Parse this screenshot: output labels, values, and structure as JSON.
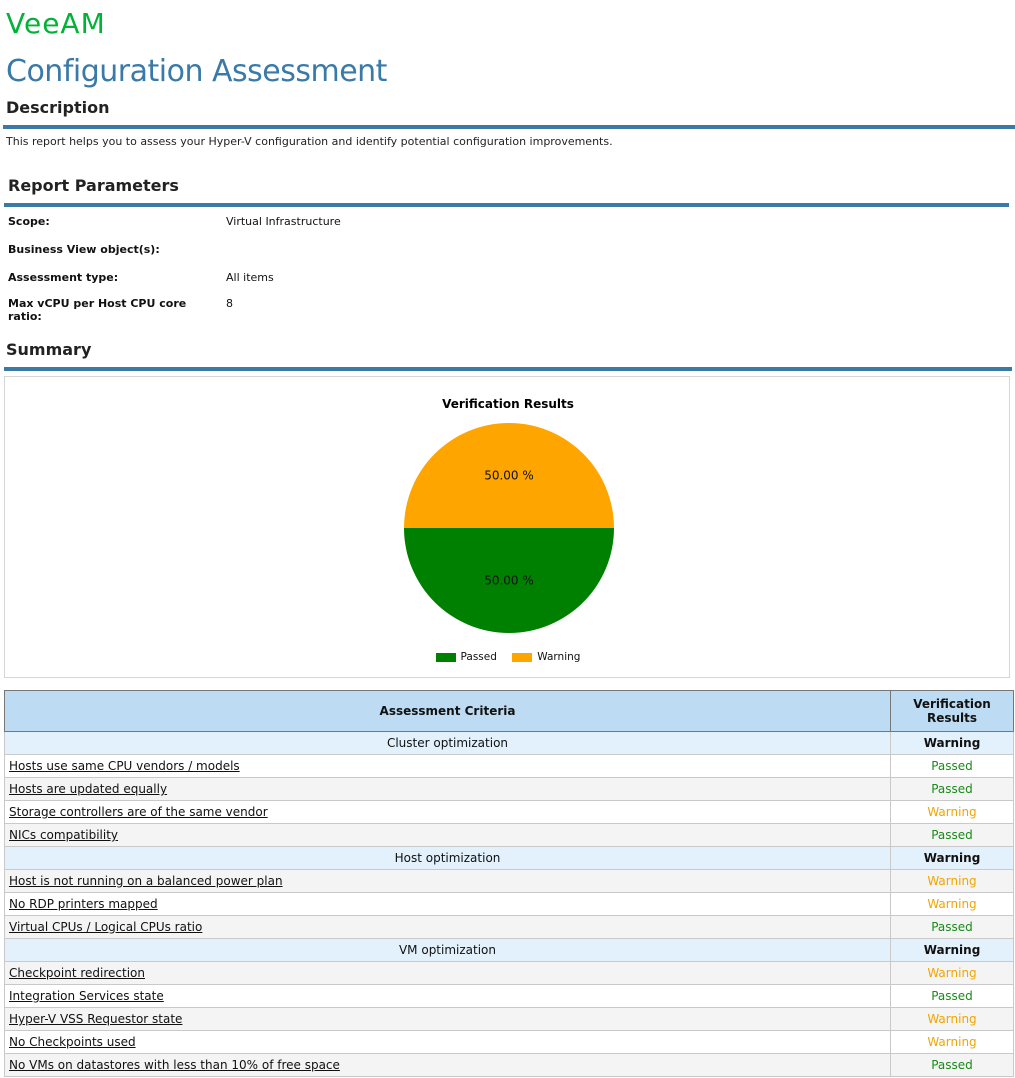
{
  "brand": {
    "logo": "VeeAM"
  },
  "title": "Configuration Assessment",
  "description": {
    "heading": "Description",
    "text": "This report helps you to assess your Hyper-V configuration and identify potential configuration improvements."
  },
  "parameters": {
    "heading": "Report Parameters",
    "items": [
      {
        "label": "Scope:",
        "value": "Virtual Infrastructure"
      },
      {
        "label": "Business View object(s):",
        "value": ""
      },
      {
        "label": "Assessment type:",
        "value": "All items"
      },
      {
        "label": "Max vCPU per Host CPU core ratio:",
        "value": "8"
      }
    ]
  },
  "summary": {
    "heading": "Summary"
  },
  "colors": {
    "passed": "#008000",
    "warning": "#ffa500",
    "accent": "#3c7aa6"
  },
  "chart_data": {
    "type": "pie",
    "title": "Verification Results",
    "slices": [
      {
        "name": "Passed",
        "value": 50.0,
        "label": "50.00 %",
        "color": "#008000"
      },
      {
        "name": "Warning",
        "value": 50.0,
        "label": "50.00 %",
        "color": "#ffa500"
      }
    ],
    "legend": "bottom"
  },
  "table": {
    "headers": [
      "Assessment Criteria",
      "Verification Results"
    ],
    "groups": [
      {
        "name": "Cluster optimization",
        "result": "Warning",
        "items": [
          {
            "name": "Hosts use same CPU vendors / models",
            "result": "Passed"
          },
          {
            "name": "Hosts are updated equally",
            "result": "Passed"
          },
          {
            "name": "Storage controllers are of the same vendor",
            "result": "Warning"
          },
          {
            "name": "NICs compatibility",
            "result": "Passed"
          }
        ]
      },
      {
        "name": "Host optimization",
        "result": "Warning",
        "items": [
          {
            "name": "Host is not running on a balanced power plan",
            "result": "Warning"
          },
          {
            "name": "No RDP printers mapped",
            "result": "Warning"
          },
          {
            "name": "Virtual CPUs / Logical CPUs ratio",
            "result": "Passed"
          }
        ]
      },
      {
        "name": "VM optimization",
        "result": "Warning",
        "items": [
          {
            "name": "Checkpoint redirection",
            "result": "Warning"
          },
          {
            "name": "Integration Services state",
            "result": "Passed"
          },
          {
            "name": "Hyper-V VSS Requestor state",
            "result": "Warning"
          },
          {
            "name": "No Checkpoints used",
            "result": "Warning"
          },
          {
            "name": "No VMs on datastores with less than 10% of free space",
            "result": "Passed"
          }
        ]
      }
    ]
  }
}
